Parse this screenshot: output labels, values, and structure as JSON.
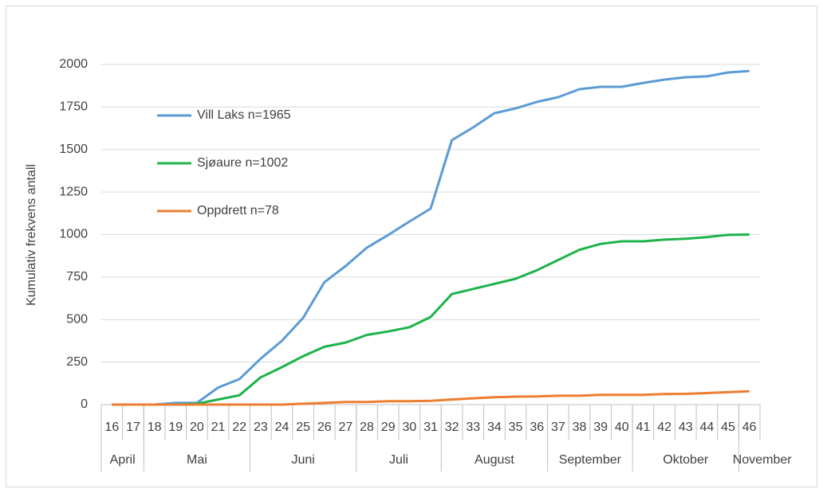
{
  "chart_data": {
    "type": "line",
    "ylabel": "Kumulativ frekvens antall",
    "categories": [
      "16",
      "17",
      "18",
      "19",
      "20",
      "21",
      "22",
      "23",
      "24",
      "25",
      "26",
      "27",
      "28",
      "29",
      "30",
      "31",
      "32",
      "33",
      "34",
      "35",
      "36",
      "37",
      "38",
      "39",
      "40",
      "41",
      "42",
      "43",
      "44",
      "45",
      "46"
    ],
    "groups": [
      {
        "label": "April",
        "span": 2
      },
      {
        "label": "Mai",
        "span": 5
      },
      {
        "label": "Juni",
        "span": 5
      },
      {
        "label": "Juli",
        "span": 4
      },
      {
        "label": "August",
        "span": 5
      },
      {
        "label": "September",
        "span": 4
      },
      {
        "label": "Oktober",
        "span": 5
      },
      {
        "label": "November",
        "span": 1
      }
    ],
    "series": [
      {
        "name": "Vill Laks n=1965",
        "color": "#5b9bd5",
        "values": [
          0,
          0,
          0,
          10,
          10,
          100,
          150,
          270,
          375,
          510,
          720,
          815,
          923,
          997,
          1077,
          1152,
          1555,
          1630,
          1714,
          1742,
          1780,
          1808,
          1855,
          1869,
          1869,
          1892,
          1911,
          1925,
          1930,
          1953,
          1962
        ]
      },
      {
        "name": "Sjøaure n=1002",
        "color": "#1db34a",
        "values": [
          0,
          0,
          0,
          0,
          5,
          30,
          55,
          160,
          220,
          285,
          340,
          365,
          410,
          430,
          455,
          515,
          650,
          680,
          710,
          740,
          790,
          850,
          910,
          945,
          960,
          960,
          970,
          975,
          985,
          998,
          1000
        ]
      },
      {
        "name": "Oppdrett n=78",
        "color": "#ed7d31",
        "values": [
          0,
          0,
          0,
          0,
          0,
          0,
          0,
          0,
          0,
          5,
          10,
          15,
          15,
          20,
          20,
          22,
          30,
          37,
          43,
          47,
          48,
          52,
          52,
          57,
          57,
          57,
          62,
          63,
          68,
          73,
          78
        ]
      }
    ],
    "ylim": [
      0,
      2000
    ],
    "yticks": [
      0,
      250,
      500,
      750,
      1000,
      1250,
      1500,
      1750,
      2000
    ],
    "grid": true,
    "legend": "upper left"
  }
}
